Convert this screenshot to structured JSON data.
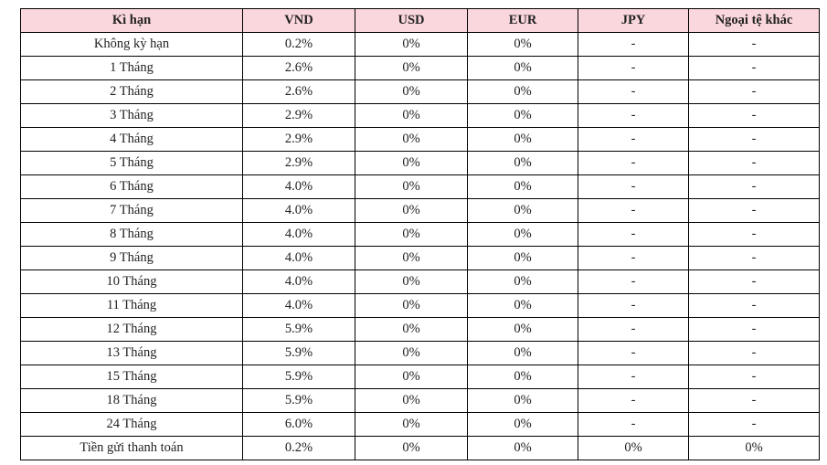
{
  "colors": {
    "header_bg": "#fad7dc",
    "border": "#000000",
    "text": "#222222"
  },
  "table": {
    "columns": [
      {
        "key": "term",
        "label": "Kì hạn"
      },
      {
        "key": "vnd",
        "label": "VND"
      },
      {
        "key": "usd",
        "label": "USD"
      },
      {
        "key": "eur",
        "label": "EUR"
      },
      {
        "key": "jpy",
        "label": "JPY"
      },
      {
        "key": "other",
        "label": "Ngoại tệ khác"
      }
    ],
    "rows": [
      [
        "Không kỳ hạn",
        "0.2%",
        "0%",
        "0%",
        "-",
        "-"
      ],
      [
        "1 Tháng",
        "2.6%",
        "0%",
        "0%",
        "-",
        "-"
      ],
      [
        "2 Tháng",
        "2.6%",
        "0%",
        "0%",
        "-",
        "-"
      ],
      [
        "3 Tháng",
        "2.9%",
        "0%",
        "0%",
        "-",
        "-"
      ],
      [
        "4 Tháng",
        "2.9%",
        "0%",
        "0%",
        "-",
        "-"
      ],
      [
        "5 Tháng",
        "2.9%",
        "0%",
        "0%",
        "-",
        "-"
      ],
      [
        "6 Tháng",
        "4.0%",
        "0%",
        "0%",
        "-",
        "-"
      ],
      [
        "7 Tháng",
        "4.0%",
        "0%",
        "0%",
        "-",
        "-"
      ],
      [
        "8 Tháng",
        "4.0%",
        "0%",
        "0%",
        "-",
        "-"
      ],
      [
        "9 Tháng",
        "4.0%",
        "0%",
        "0%",
        "-",
        "-"
      ],
      [
        "10 Tháng",
        "4.0%",
        "0%",
        "0%",
        "-",
        "-"
      ],
      [
        "11 Tháng",
        "4.0%",
        "0%",
        "0%",
        "-",
        "-"
      ],
      [
        "12 Tháng",
        "5.9%",
        "0%",
        "0%",
        "-",
        "-"
      ],
      [
        "13 Tháng",
        "5.9%",
        "0%",
        "0%",
        "-",
        "-"
      ],
      [
        "15 Tháng",
        "5.9%",
        "0%",
        "0%",
        "-",
        "-"
      ],
      [
        "18 Tháng",
        "5.9%",
        "0%",
        "0%",
        "-",
        "-"
      ],
      [
        "24 Tháng",
        "6.0%",
        "0%",
        "0%",
        "-",
        "-"
      ],
      [
        "Tiền gửi thanh toán",
        "0.2%",
        "0%",
        "0%",
        "0%",
        "0%"
      ]
    ]
  }
}
